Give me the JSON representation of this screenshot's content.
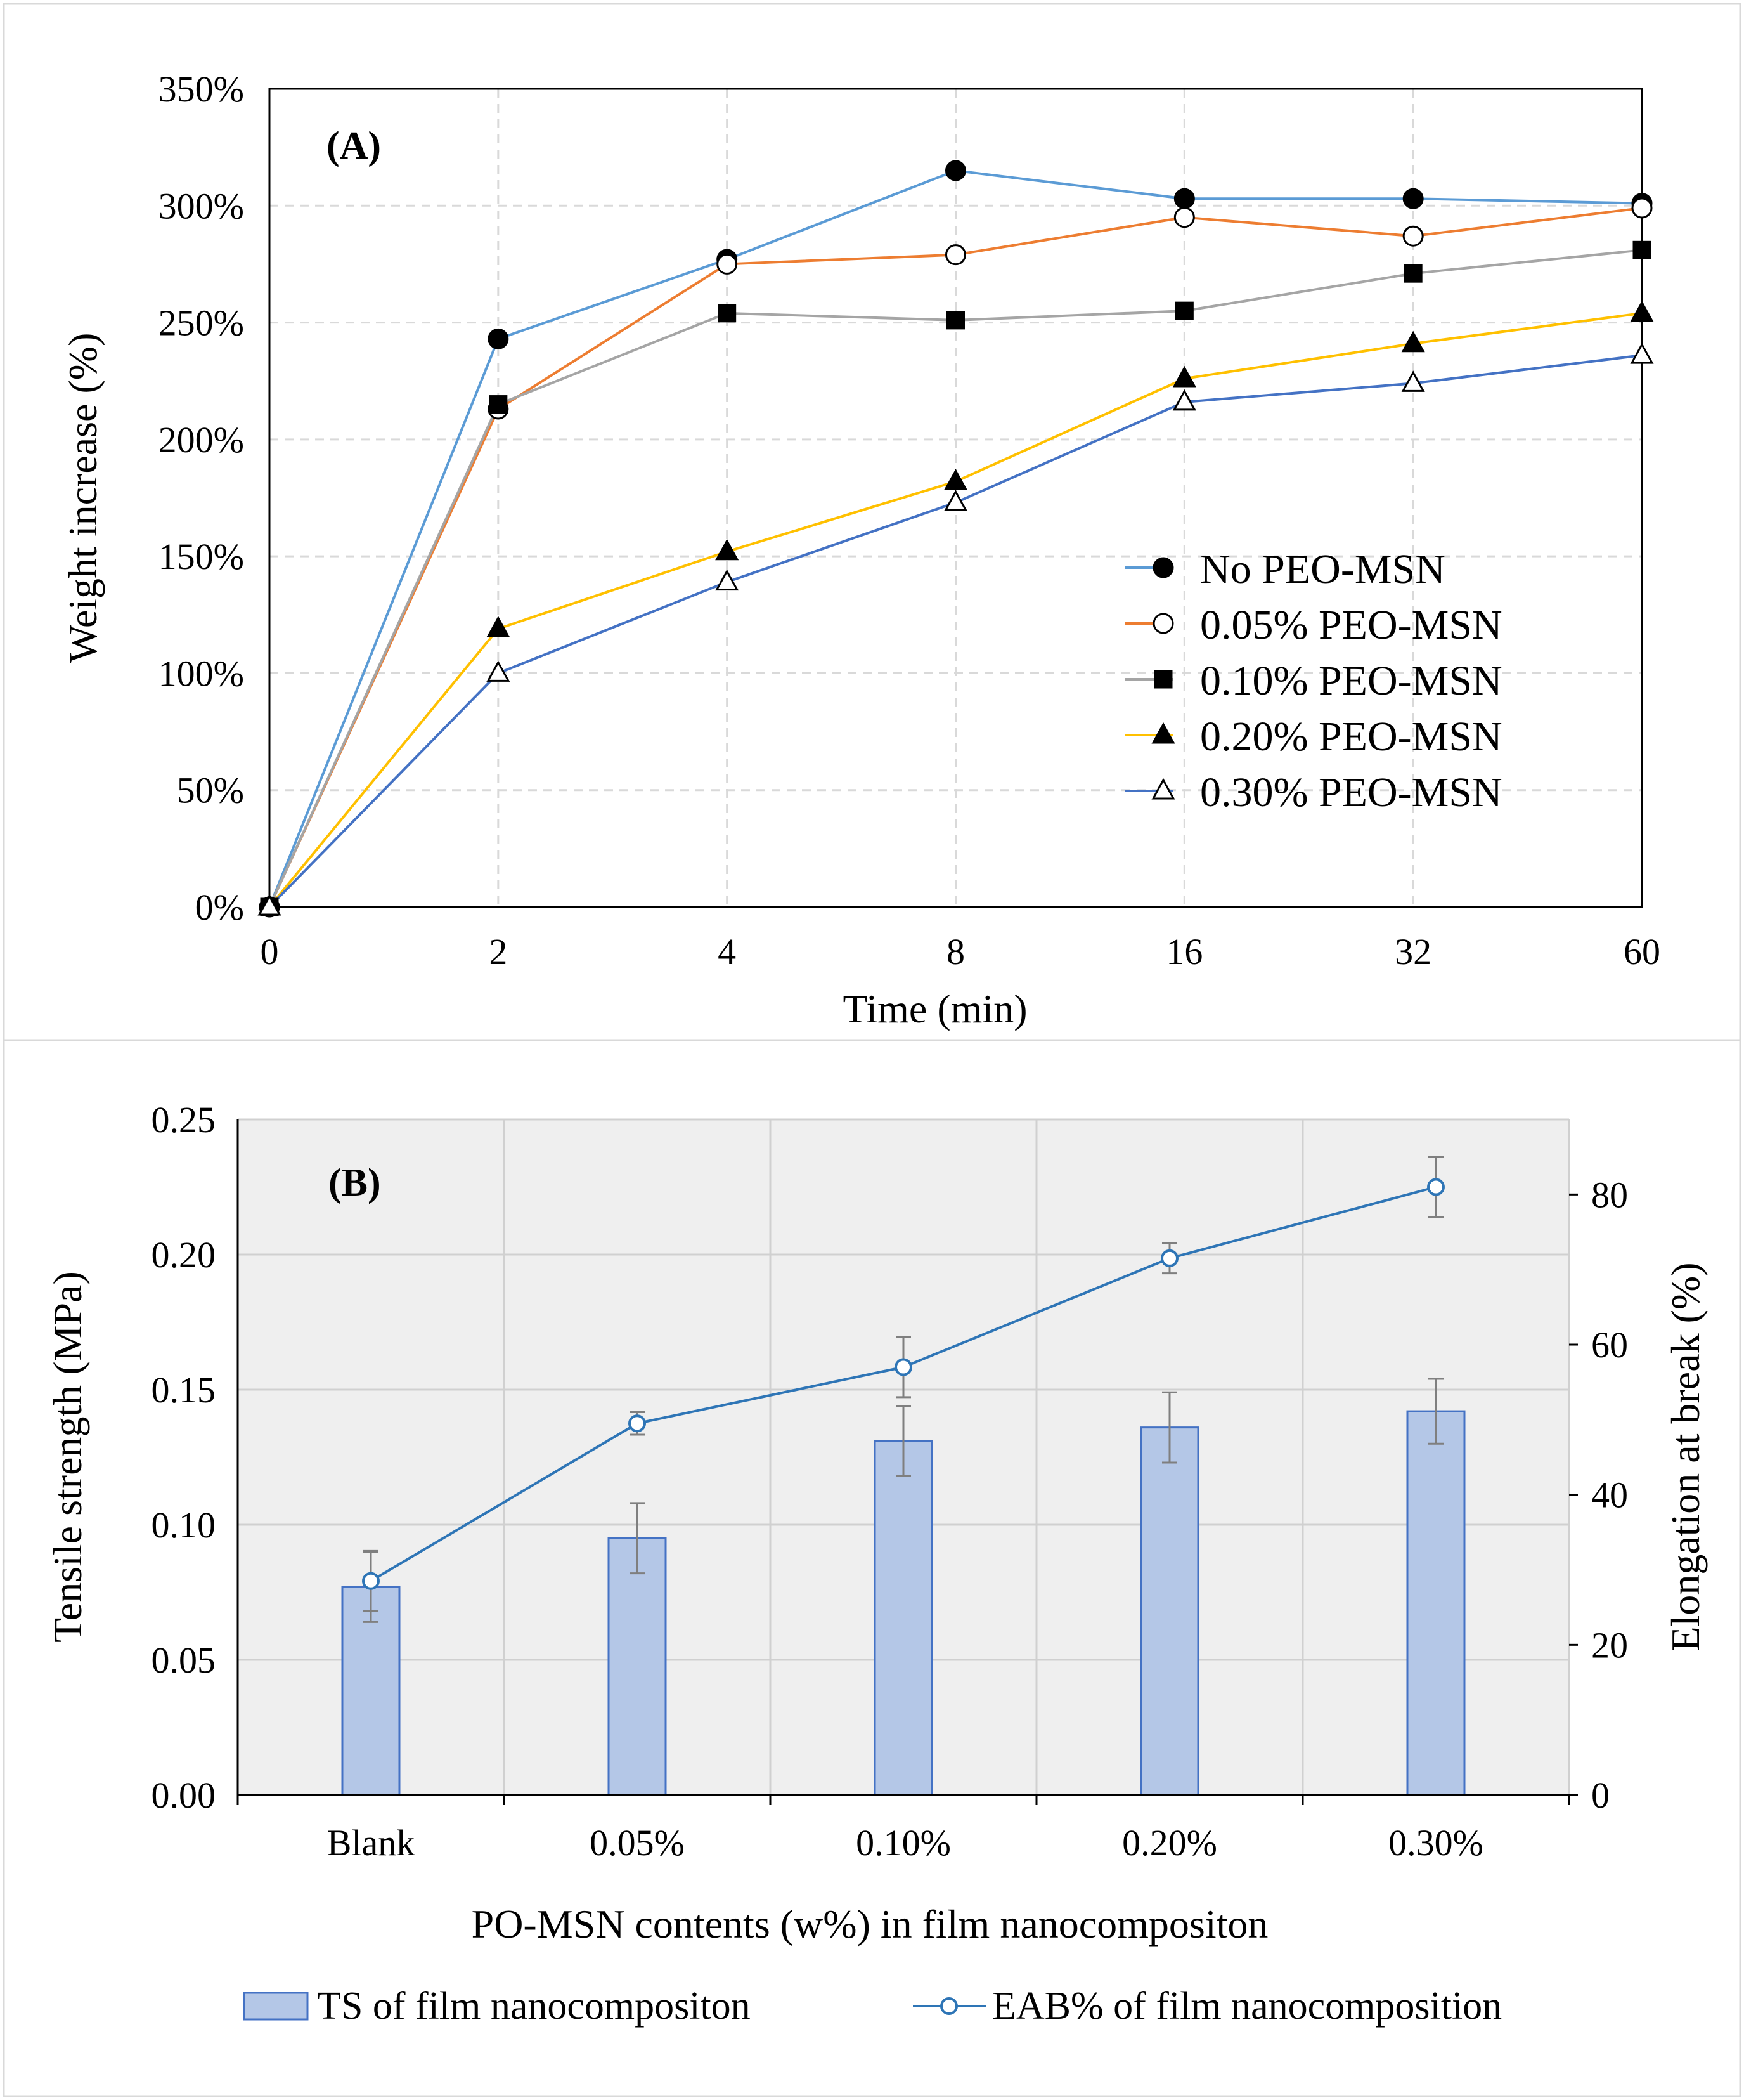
{
  "chart_data": [
    {
      "type": "line",
      "panel_label": "(A)",
      "xlabel": "Time (min)",
      "ylabel": "Weight increase (%)",
      "categories": [
        "0",
        "2",
        "4",
        "8",
        "16",
        "32",
        "60"
      ],
      "y_ticks": [
        "0%",
        "50%",
        "100%",
        "150%",
        "200%",
        "250%",
        "300%",
        "350%"
      ],
      "ylim": [
        0,
        350
      ],
      "grid": true,
      "legend_position": "center-right",
      "series": [
        {
          "name": "No PEO-MSN",
          "color": "#5B9BD5",
          "marker": "filled-circle",
          "values": [
            0,
            243,
            277,
            315,
            303,
            303,
            301
          ]
        },
        {
          "name": "0.05% PEO-MSN",
          "color": "#ED7D31",
          "marker": "open-circle",
          "values": [
            0,
            213,
            275,
            279,
            295,
            287,
            299
          ]
        },
        {
          "name": "0.10% PEO-MSN",
          "color": "#A5A5A5",
          "marker": "filled-square",
          "values": [
            0,
            215,
            254,
            251,
            255,
            271,
            281
          ]
        },
        {
          "name": "0.20% PEO-MSN",
          "color": "#FFC000",
          "marker": "filled-triangle",
          "values": [
            0,
            119,
            152,
            182,
            226,
            241,
            254
          ]
        },
        {
          "name": "0.30% PEO-MSN",
          "color": "#4472C4",
          "marker": "open-triangle",
          "values": [
            0,
            100,
            139,
            173,
            216,
            224,
            236
          ]
        }
      ]
    },
    {
      "type": "bar",
      "panel_label": "(B)",
      "xlabel": "PO-MSN contents (w%) in film nanocompositon",
      "ylabel": "Tensile strength (MPa)",
      "y2label": "Elongation at break (%)",
      "categories": [
        "Blank",
        "0.05%",
        "0.10%",
        "0.20%",
        "0.30%"
      ],
      "y_ticks": [
        "0.00",
        "0.05",
        "0.10",
        "0.15",
        "0.20",
        "0.25"
      ],
      "ylim": [
        0,
        0.25
      ],
      "y2_ticks": [
        "0",
        "20",
        "40",
        "60",
        "80"
      ],
      "y2lim": [
        0,
        90
      ],
      "grid": true,
      "legend_position": "bottom",
      "series": [
        {
          "name": "TS of film nanocompositon",
          "type": "bar",
          "axis": "left",
          "color": "#B4C7E7",
          "edge_color": "#4472C4",
          "values": [
            0.077,
            0.095,
            0.131,
            0.136,
            0.142
          ],
          "errors": [
            0.013,
            0.013,
            0.013,
            0.013,
            0.012
          ]
        },
        {
          "name": "EAB% of film nanocomposition",
          "type": "line",
          "axis": "right",
          "color": "#2E75B6",
          "values": [
            28.5,
            49.5,
            57,
            71.5,
            81
          ],
          "errors": [
            4,
            1.5,
            4,
            2,
            4
          ]
        }
      ]
    }
  ]
}
